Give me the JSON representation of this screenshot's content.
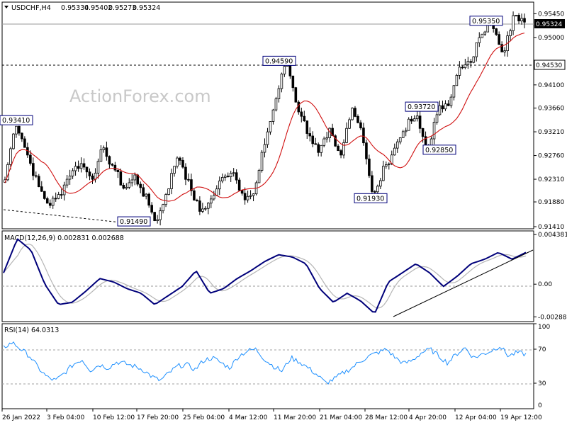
{
  "chart_data": [
    {
      "type": "candlestick",
      "title": "USDCHF,H4",
      "ohlc": {
        "open": "0.95334",
        "high": "0.95402",
        "low": "0.95273",
        "close": "0.95324"
      },
      "watermark": "ActionForex.com",
      "current_price_label": "0.95324",
      "y_ticks": [
        "0.95450",
        "0.95000",
        "0.94530",
        "0.94100",
        "0.93660",
        "0.93210",
        "0.92760",
        "0.92310",
        "0.91880",
        "0.91410"
      ],
      "y_tick_values": [
        0.9545,
        0.95,
        0.9453,
        0.941,
        0.9366,
        0.9321,
        0.9276,
        0.9231,
        0.9188,
        0.9141
      ],
      "ylim": [
        0.9137,
        0.9567
      ],
      "x_ticks": [
        "26 Jan 2022",
        "3 Feb 04:00",
        "10 Feb 12:00",
        "17 Feb 20:00",
        "25 Feb 04:00",
        "4 Mar 12:00",
        "11 Mar 20:00",
        "21 Mar 04:00",
        "28 Mar 12:00",
        "4 Apr 20:00",
        "12 Apr 04:00",
        "19 Apr 12:00"
      ],
      "horizontal_lines": [
        {
          "value": 0.9535
        },
        {
          "value": 0.9453
        }
      ],
      "annotations": [
        {
          "label": "0.93410",
          "value": 0.9341
        },
        {
          "label": "0.91490",
          "value": 0.9149
        },
        {
          "label": "0.94590",
          "value": 0.9459
        },
        {
          "label": "0.91930",
          "value": 0.9193
        },
        {
          "label": "0.93720",
          "value": 0.9372
        },
        {
          "label": "0.92850",
          "value": 0.9285
        },
        {
          "label": "0.95350",
          "value": 0.9535
        }
      ],
      "price_path": [
        0.923,
        0.9341,
        0.9282,
        0.9222,
        0.9182,
        0.92,
        0.9242,
        0.9262,
        0.9232,
        0.9286,
        0.9256,
        0.9212,
        0.9236,
        0.9196,
        0.9149,
        0.921,
        0.928,
        0.922,
        0.917,
        0.919,
        0.923,
        0.925,
        0.92,
        0.92,
        0.93,
        0.938,
        0.9459,
        0.937,
        0.932,
        0.928,
        0.932,
        0.927,
        0.937,
        0.9322,
        0.9193,
        0.925,
        0.929,
        0.933,
        0.935,
        0.9285,
        0.936,
        0.938,
        0.944,
        0.945,
        0.951,
        0.9535,
        0.946,
        0.9545,
        0.9533
      ]
    },
    {
      "type": "line",
      "title": "MACD(12,26,9) 0.002831 0.002688",
      "y_ticks": [
        "0.004381",
        "0.00",
        "-0.002881"
      ],
      "y_tick_values": [
        0.004381,
        0,
        -0.002881
      ],
      "ylim": [
        -0.0033,
        0.0047
      ],
      "macd_path": [
        0.001,
        0.004,
        0.003,
        0.0,
        -0.0018,
        -0.0016,
        -0.0006,
        0.0005,
        0.0002,
        -0.0004,
        -0.0008,
        -0.0018,
        -0.001,
        -0.0002,
        0.0012,
        -0.0008,
        -0.0004,
        0.0005,
        0.0012,
        0.002,
        0.0026,
        0.0024,
        0.0018,
        -0.0004,
        -0.0016,
        -0.0008,
        -0.0015,
        -0.0026,
        0.0002,
        0.001,
        0.0018,
        0.001,
        -0.0002,
        0.0007,
        0.0018,
        0.0022,
        0.0028,
        0.0022,
        0.0028
      ],
      "trendline": [
        -0.0028,
        0.0029
      ]
    },
    {
      "type": "line",
      "title": "RSI(14) 64.0313",
      "y_ticks": [
        "100",
        "70",
        "30",
        "0"
      ],
      "y_tick_values": [
        100,
        70,
        30,
        0
      ],
      "ylim": [
        0,
        100
      ],
      "rsi_path": [
        72,
        78,
        70,
        62,
        48,
        37,
        33,
        42,
        52,
        58,
        45,
        52,
        48,
        55,
        53,
        50,
        46,
        38,
        33,
        42,
        50,
        52,
        46,
        57,
        60,
        54,
        48,
        62,
        68,
        70,
        58,
        50,
        44,
        60,
        55,
        48,
        40,
        30,
        35,
        42,
        48,
        56,
        62,
        66,
        70,
        60,
        53,
        57,
        66,
        70,
        62,
        54,
        64,
        72,
        60,
        64,
        68,
        74,
        62,
        66,
        64
      ]
    }
  ]
}
